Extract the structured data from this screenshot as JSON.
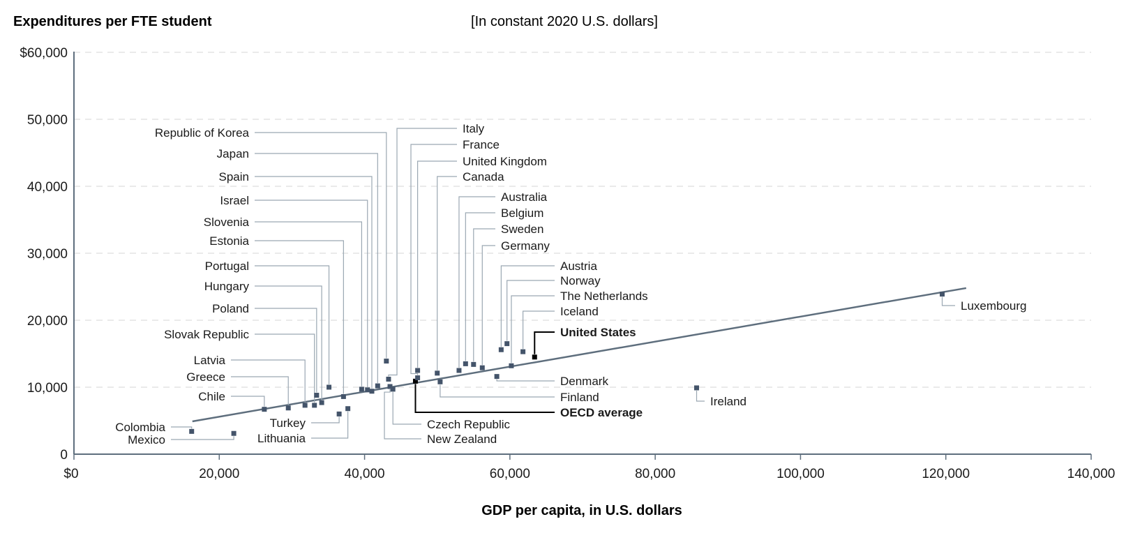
{
  "chart_data": {
    "type": "scatter",
    "title": "",
    "subtitle": "[In constant 2020 U.S. dollars]",
    "ylabel": "Expenditures per FTE student",
    "xlabel": "GDP per capita, in U.S. dollars",
    "xlim": [
      0,
      140000
    ],
    "ylim": [
      0,
      60000
    ],
    "x_ticks": [
      0,
      20000,
      40000,
      60000,
      80000,
      100000,
      120000,
      140000
    ],
    "x_tick_labels": [
      "$0",
      "20,000",
      "40,000",
      "60,000",
      "80,000",
      "100,000",
      "120,000",
      "140,000"
    ],
    "y_ticks": [
      0,
      10000,
      20000,
      30000,
      40000,
      50000,
      60000
    ],
    "y_tick_labels": [
      "0",
      "10,000",
      "20,000",
      "30,000",
      "40,000",
      "50,000",
      "$60,000"
    ],
    "grid": "horizontal dashed",
    "trendline": {
      "x": [
        16300,
        122800
      ],
      "y": [
        4900,
        24800
      ]
    },
    "colors": {
      "point": "#44546a",
      "highlight": "#000000",
      "trend": "#5e6e7d",
      "leader": "#9aa7b2",
      "grid": "#d4d4d4",
      "axis": "#5e6e7d"
    },
    "points": [
      {
        "name": "Colombia",
        "x": 16200,
        "y": 3400
      },
      {
        "name": "Mexico",
        "x": 22000,
        "y": 3100
      },
      {
        "name": "Chile",
        "x": 26200,
        "y": 6700
      },
      {
        "name": "Greece",
        "x": 29500,
        "y": 6900
      },
      {
        "name": "Latvia",
        "x": 31800,
        "y": 7300
      },
      {
        "name": "Slovak Republic",
        "x": 33100,
        "y": 7300
      },
      {
        "name": "Poland",
        "x": 33400,
        "y": 8800
      },
      {
        "name": "Hungary",
        "x": 34100,
        "y": 7700
      },
      {
        "name": "Portugal",
        "x": 35100,
        "y": 10000
      },
      {
        "name": "Turkey",
        "x": 36500,
        "y": 6000
      },
      {
        "name": "Estonia",
        "x": 37100,
        "y": 8600
      },
      {
        "name": "Lithuania",
        "x": 37700,
        "y": 6800
      },
      {
        "name": "Slovenia",
        "x": 39600,
        "y": 9700
      },
      {
        "name": "Israel",
        "x": 40400,
        "y": 9600
      },
      {
        "name": "Spain",
        "x": 41000,
        "y": 9400
      },
      {
        "name": "Japan",
        "x": 41800,
        "y": 10200
      },
      {
        "name": "Republic of Korea",
        "x": 43000,
        "y": 13900
      },
      {
        "name": "Italy",
        "x": 43300,
        "y": 11200
      },
      {
        "name": "New Zealand",
        "x": 43500,
        "y": 10100
      },
      {
        "name": "Czech Republic",
        "x": 43900,
        "y": 9700
      },
      {
        "name": "OECD average",
        "x": 47000,
        "y": 10900,
        "highlight": true
      },
      {
        "name": "France",
        "x": 47300,
        "y": 11400
      },
      {
        "name": "United Kingdom",
        "x": 47300,
        "y": 12500
      },
      {
        "name": "Canada",
        "x": 50000,
        "y": 12100
      },
      {
        "name": "Finland",
        "x": 50400,
        "y": 10800
      },
      {
        "name": "Australia",
        "x": 53000,
        "y": 12500
      },
      {
        "name": "Belgium",
        "x": 53900,
        "y": 13500
      },
      {
        "name": "Sweden",
        "x": 55000,
        "y": 13400
      },
      {
        "name": "Germany",
        "x": 56200,
        "y": 12900
      },
      {
        "name": "Denmark",
        "x": 58200,
        "y": 11600
      },
      {
        "name": "Austria",
        "x": 58800,
        "y": 15600
      },
      {
        "name": "Norway",
        "x": 59600,
        "y": 16500
      },
      {
        "name": "The Netherlands",
        "x": 60200,
        "y": 13200
      },
      {
        "name": "Iceland",
        "x": 61800,
        "y": 15300
      },
      {
        "name": "United States",
        "x": 63400,
        "y": 14500,
        "highlight": true
      },
      {
        "name": "Ireland",
        "x": 85700,
        "y": 9900
      },
      {
        "name": "Luxembourg",
        "x": 119500,
        "y": 23900
      }
    ]
  }
}
